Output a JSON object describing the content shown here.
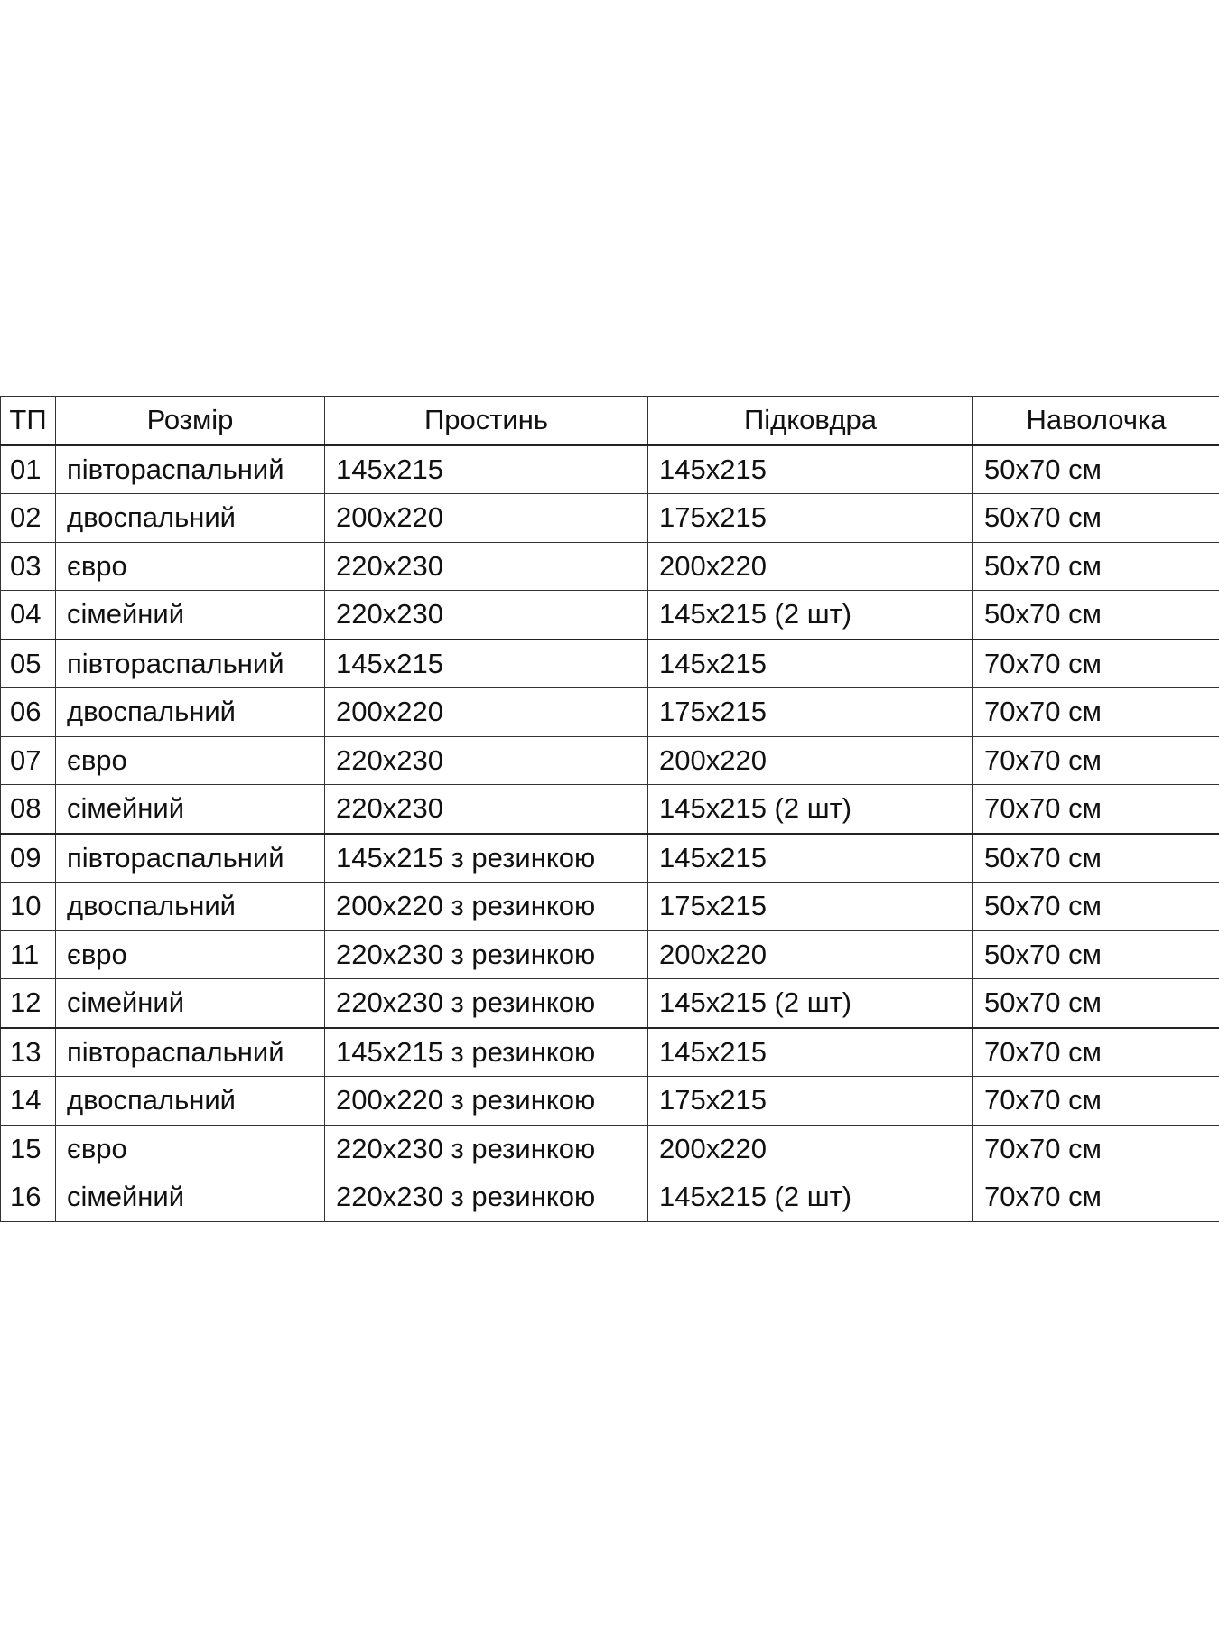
{
  "headers": [
    "ТП",
    "Розмір",
    "Простинь",
    "Підковдра",
    "Наволочка"
  ],
  "rows": [
    [
      "01",
      "півтораспальний",
      "145x215",
      "145x215",
      "50x70 см"
    ],
    [
      "02",
      "двоспальний",
      "200x220",
      "175x215",
      "50x70 см"
    ],
    [
      "03",
      "євро",
      "220x230",
      "200x220",
      "50x70 см"
    ],
    [
      "04",
      "сімейний",
      "220x230",
      "145x215 (2 шт)",
      "50x70 см"
    ],
    [
      "05",
      "півтораспальний",
      "145x215",
      "145x215",
      "70x70 см"
    ],
    [
      "06",
      "двоспальний",
      "200x220",
      "175x215",
      "70x70 см"
    ],
    [
      "07",
      "євро",
      "220x230",
      "200x220",
      "70x70 см"
    ],
    [
      "08",
      "сімейний",
      "220x230",
      "145x215 (2 шт)",
      "70x70 см"
    ],
    [
      "09",
      "півтораспальний",
      "145x215 з резинкою",
      "145x215",
      "50x70 см"
    ],
    [
      "10",
      "двоспальний",
      "200x220 з резинкою",
      "175x215",
      "50x70 см"
    ],
    [
      "11",
      "євро",
      "220x230 з резинкою",
      "200x220",
      "50x70 см"
    ],
    [
      "12",
      "сімейний",
      "220x230 з резинкою",
      "145x215 (2 шт)",
      "50x70 см"
    ],
    [
      "13",
      "півтораспальний",
      "145x215 з резинкою",
      "145x215",
      "70x70 см"
    ],
    [
      "14",
      "двоспальний",
      "200x220 з резинкою",
      "175x215",
      "70x70 см"
    ],
    [
      "15",
      "євро",
      "220x230 з резинкою",
      "200x220",
      "70x70 см"
    ],
    [
      "16",
      "сімейний",
      "220x230 з резинкою",
      "145x215 (2 шт)",
      "70x70 см"
    ]
  ]
}
